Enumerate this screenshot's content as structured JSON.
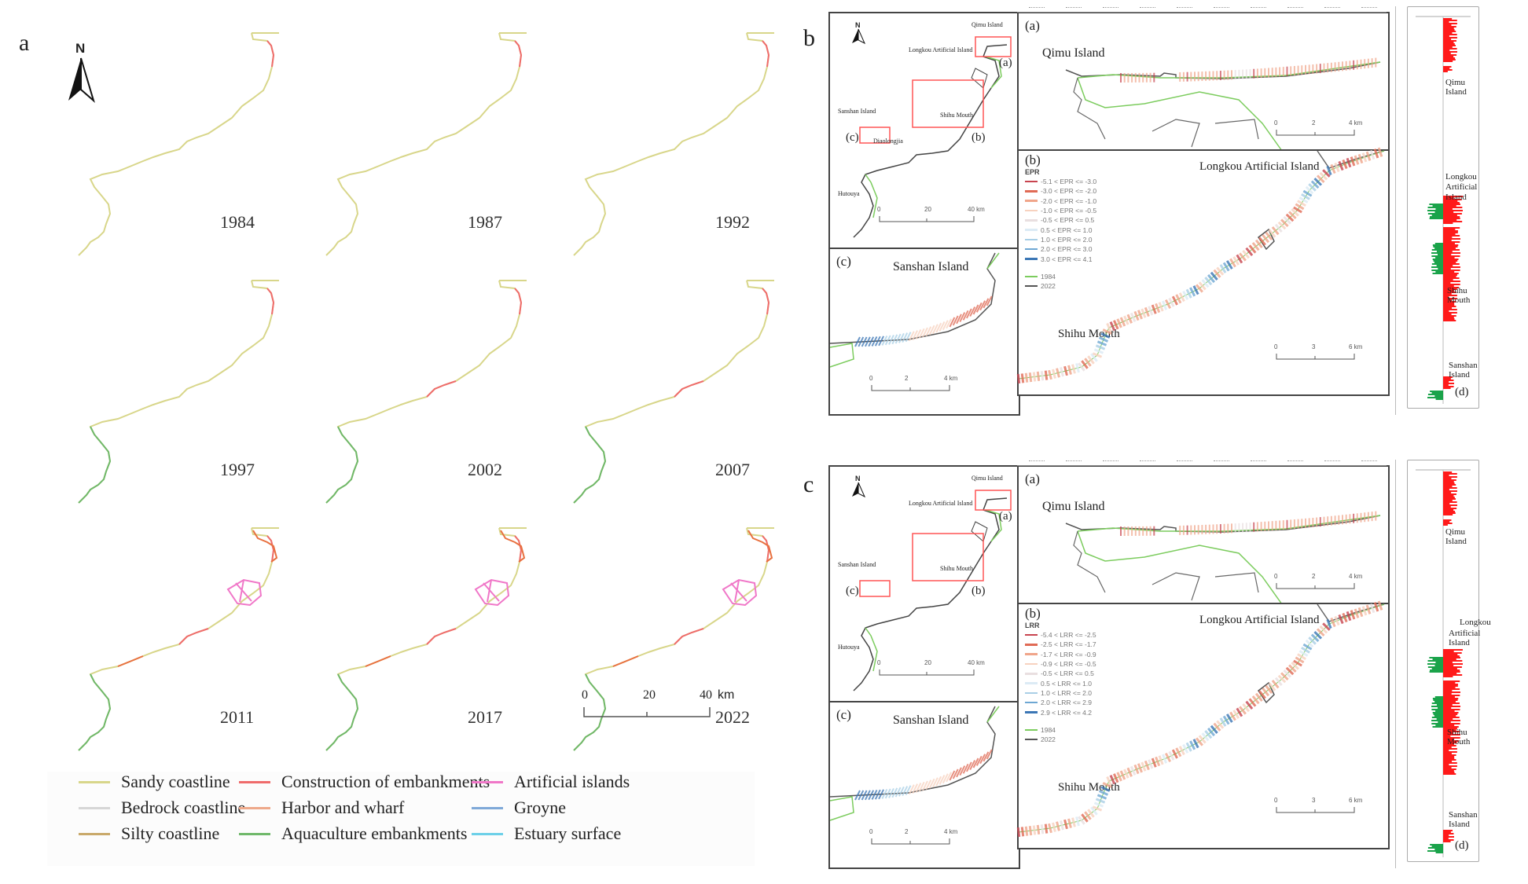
{
  "figure": {
    "panel_labels": {
      "a": "a",
      "b": "b",
      "c": "c"
    }
  },
  "panel_a": {
    "north_label": "N",
    "years": [
      "1984",
      "1987",
      "1992",
      "1997",
      "2002",
      "2007",
      "2011",
      "2017",
      "2022"
    ],
    "scale_bar": {
      "ticks": [
        "0",
        "20",
        "40"
      ],
      "unit": "km"
    },
    "legend": [
      {
        "label": "Sandy coastline",
        "color": "#d8d68a"
      },
      {
        "label": "Construction of embankments",
        "color": "#ef6b6b"
      },
      {
        "label": "Artificial islands",
        "color": "#f077c8"
      },
      {
        "label": "Bedrock coastline",
        "color": "#d6d6d6"
      },
      {
        "label": "Harbor and wharf",
        "color": "#eea98a"
      },
      {
        "label": "Groyne",
        "color": "#7fa9d8"
      },
      {
        "label": "Silty coastline",
        "color": "#c9a96a"
      },
      {
        "label": "Aquaculture embankments",
        "color": "#6fb86a"
      },
      {
        "label": "Estuary surface",
        "color": "#6cd0e8"
      }
    ]
  },
  "panel_b": {
    "metric": "EPR",
    "overview": {
      "north_label": "N",
      "places": {
        "qimu": "Qimu Island",
        "longkou": "Longkou Artificial Island",
        "sanshan": "Sanshan Island",
        "shihu": "Shihu Mouth",
        "diaolongjia": "Diaolongjia",
        "hutouya": "Hutouya"
      },
      "inset_labels": {
        "a": "(a)",
        "b": "(b)",
        "c": "(c)"
      },
      "scale_bar": {
        "ticks": [
          "0",
          "20",
          "40 km"
        ]
      }
    },
    "sub_a": {
      "label": "(a)",
      "place": "Qimu Island",
      "scale_bar": {
        "ticks": [
          "0",
          "2",
          "4 km"
        ]
      }
    },
    "sub_b": {
      "label": "(b)",
      "place_top": "Longkou Artificial Island",
      "place_bottom": "Shihu Mouth",
      "scale_bar": {
        "ticks": [
          "0",
          "3",
          "6 km"
        ]
      },
      "legend_title": "EPR",
      "legend": [
        {
          "label": "-5.1 < EPR <= -3.0",
          "color": "#c8444f"
        },
        {
          "label": "-3.0 < EPR <= -2.0",
          "color": "#e06a55"
        },
        {
          "label": "-2.0 < EPR <= -1.0",
          "color": "#f0a58a"
        },
        {
          "label": "-1.0 < EPR <= -0.5",
          "color": "#f7d2bf"
        },
        {
          "label": "-0.5 < EPR <= 0.5",
          "color": "#e9dfe0"
        },
        {
          "label": "0.5 < EPR <= 1.0",
          "color": "#dcebf5"
        },
        {
          "label": "1.0 < EPR <= 2.0",
          "color": "#a9cfe6"
        },
        {
          "label": "2.0 < EPR <= 3.0",
          "color": "#6ea7d3"
        },
        {
          "label": "3.0 < EPR <= 4.1",
          "color": "#3b76b5"
        }
      ],
      "years_legend": [
        {
          "label": "1984",
          "color": "#7ccc5e"
        },
        {
          "label": "2022",
          "color": "#555555"
        }
      ]
    },
    "sub_c": {
      "label": "(c)",
      "place": "Sanshan Island",
      "scale_bar": {
        "ticks": [
          "0",
          "2",
          "4 km"
        ]
      }
    },
    "profile_d": {
      "label": "(d)",
      "places": [
        "Qimu Island",
        "Longkou Artificial Island",
        "Shihu Mouth",
        "Sanshan Island"
      ],
      "positive_color": "#ff1a1a",
      "negative_color": "#1aa34a"
    }
  },
  "panel_c": {
    "metric": "LRR",
    "overview": {
      "north_label": "N",
      "places": {
        "qimu": "Qimu Island",
        "longkou": "Longkou Artificial Island",
        "sanshan": "Sanshan Island",
        "shihu": "Shihu Mouth",
        "hutouya": "Hutouya"
      },
      "inset_labels": {
        "a": "(a)",
        "b": "(b)",
        "c": "(c)"
      },
      "scale_bar": {
        "ticks": [
          "0",
          "20",
          "40 km"
        ]
      }
    },
    "sub_a": {
      "label": "(a)",
      "place": "Qimu Island",
      "scale_bar": {
        "ticks": [
          "0",
          "2",
          "4 km"
        ]
      }
    },
    "sub_b": {
      "label": "(b)",
      "place_top": "Longkou Artificial Island",
      "place_bottom": "Shihu Mouth",
      "scale_bar": {
        "ticks": [
          "0",
          "3",
          "6 km"
        ]
      },
      "legend_title": "LRR",
      "legend": [
        {
          "label": "-5.4 < LRR <= -2.5",
          "color": "#c8444f"
        },
        {
          "label": "-2.5 < LRR <= -1.7",
          "color": "#e06a55"
        },
        {
          "label": "-1.7 < LRR <= -0.9",
          "color": "#f0a58a"
        },
        {
          "label": "-0.9 < LRR <= -0.5",
          "color": "#f7d2bf"
        },
        {
          "label": "-0.5 < LRR <= 0.5",
          "color": "#e9dfe0"
        },
        {
          "label": "0.5 < LRR <= 1.0",
          "color": "#dcebf5"
        },
        {
          "label": "1.0 < LRR <= 2.0",
          "color": "#a9cfe6"
        },
        {
          "label": "2.0 < LRR <= 2.9",
          "color": "#6ea7d3"
        },
        {
          "label": "2.9 < LRR <= 4.2",
          "color": "#3b76b5"
        }
      ],
      "years_legend": [
        {
          "label": "1984",
          "color": "#7ccc5e"
        },
        {
          "label": "2022",
          "color": "#555555"
        }
      ]
    },
    "sub_c": {
      "label": "(c)",
      "place": "Sanshan Island",
      "scale_bar": {
        "ticks": [
          "0",
          "2",
          "4 km"
        ]
      }
    },
    "profile_d": {
      "label": "(d)",
      "places": [
        "Qimu Island",
        "Longkou",
        "Artificial Island",
        "Shihu Mouth",
        "Sanshan Island"
      ],
      "positive_color": "#ff1a1a",
      "negative_color": "#1aa34a"
    }
  }
}
